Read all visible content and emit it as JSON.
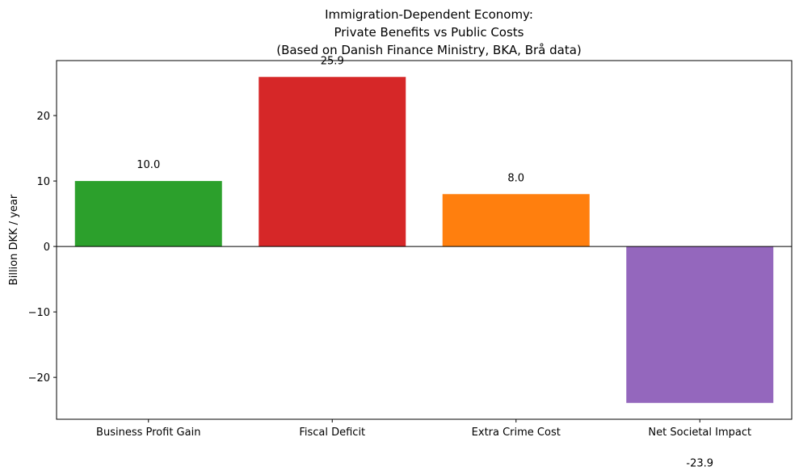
{
  "chart_data": {
    "type": "bar",
    "title_lines": [
      "Immigration-Dependent Economy:",
      "Private Benefits vs Public Costs",
      "(Based on Danish Finance Ministry, BKA, Brå data)"
    ],
    "xlabel": "",
    "ylabel": "Billion DKK / year",
    "categories": [
      "Business Profit Gain",
      "Fiscal Deficit",
      "Extra Crime Cost",
      "Net Societal Impact"
    ],
    "values": [
      10.0,
      25.9,
      8.0,
      -23.9
    ],
    "value_labels": [
      "10.0",
      "25.9",
      "8.0",
      "-23.9"
    ],
    "colors": [
      "#2ca02c",
      "#d62728",
      "#ff7f0e",
      "#9467bd"
    ],
    "ylim": [
      -26.4,
      28.4
    ],
    "yticks": [
      -20,
      -10,
      0,
      10,
      20
    ],
    "ytick_labels": [
      "−20",
      "−10",
      "0",
      "10",
      "20"
    ],
    "zero_line": true,
    "grid": false
  }
}
